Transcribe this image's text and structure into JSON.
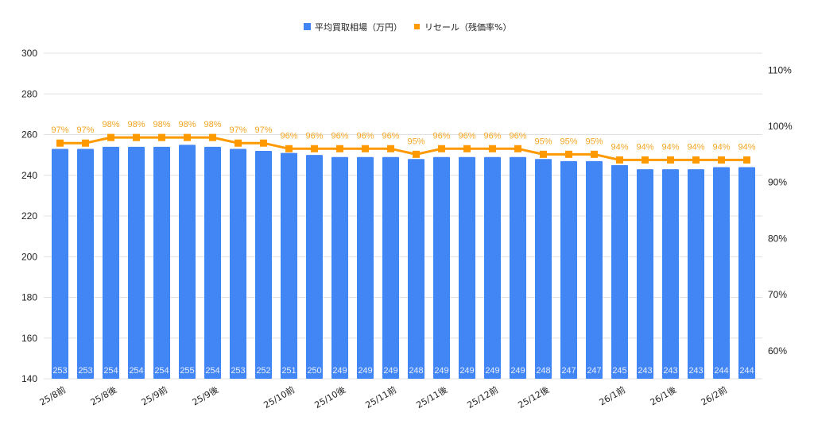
{
  "legend": {
    "series1_label": "平均買取相場（万円）",
    "series2_label": "リセール（残価率%）"
  },
  "colors": {
    "bar": "#4285f4",
    "line": "#ff9900",
    "line_label": "#f5a623",
    "grid": "#e0e0e0",
    "axis_text": "#222222"
  },
  "chart_data": {
    "type": "bar+line",
    "title": "",
    "xlabel": "",
    "ylabel": "",
    "ylabel_right": "",
    "legend_position": "top",
    "grid": true,
    "ylim": [
      140,
      300
    ],
    "yticks": [
      140,
      160,
      180,
      200,
      220,
      240,
      260,
      280,
      300
    ],
    "ylim_right": [
      55,
      113
    ],
    "yticks_right": [
      "60%",
      "70%",
      "80%",
      "90%",
      "100%",
      "110%"
    ],
    "yticks_right_values": [
      60,
      70,
      80,
      90,
      100,
      110
    ],
    "x_tick_labels": [
      {
        "index": 0,
        "label": "25/8前"
      },
      {
        "index": 2,
        "label": "25/8後"
      },
      {
        "index": 4,
        "label": "25/9前"
      },
      {
        "index": 6,
        "label": "25/9後"
      },
      {
        "index": 9,
        "label": "25/10前"
      },
      {
        "index": 11,
        "label": "25/10後"
      },
      {
        "index": 13,
        "label": "25/11前"
      },
      {
        "index": 15,
        "label": "25/11後"
      },
      {
        "index": 17,
        "label": "25/12前"
      },
      {
        "index": 19,
        "label": "25/12後"
      },
      {
        "index": 22,
        "label": "26/1前"
      },
      {
        "index": 24,
        "label": "26/1後"
      },
      {
        "index": 26,
        "label": "26/2前"
      }
    ],
    "categories": [
      "25/8前",
      "25/8前",
      "25/8後",
      "25/8後",
      "25/9前",
      "25/9前",
      "25/9後",
      "25/9後",
      "25/9後",
      "25/10前",
      "25/10前",
      "25/10後",
      "25/10後",
      "25/11前",
      "25/11前",
      "25/11後",
      "25/11後",
      "25/12前",
      "25/12前",
      "25/12後",
      "25/12後",
      "25/12後",
      "26/1前",
      "26/1前",
      "26/1後",
      "26/1後",
      "26/2前",
      "26/2前"
    ],
    "series": [
      {
        "name": "平均買取相場（万円）",
        "type": "bar",
        "axis": "left",
        "values": [
          253,
          253,
          254,
          254,
          254,
          255,
          254,
          253,
          252,
          251,
          250,
          249,
          249,
          249,
          248,
          249,
          249,
          249,
          249,
          248,
          247,
          247,
          245,
          243,
          243,
          243,
          244,
          244
        ]
      },
      {
        "name": "リセール（残価率%）",
        "type": "line",
        "axis": "right",
        "values": [
          97,
          97,
          98,
          98,
          98,
          98,
          98,
          97,
          97,
          96,
          96,
          96,
          96,
          96,
          95,
          96,
          96,
          96,
          96,
          95,
          95,
          95,
          94,
          94,
          94,
          94,
          94,
          94
        ]
      }
    ]
  }
}
